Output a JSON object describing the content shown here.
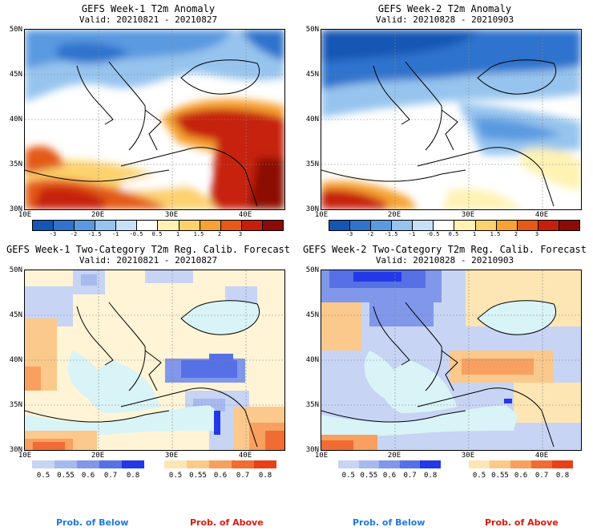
{
  "panels": [
    {
      "title": "GEFS Week-1 T2m Anomaly",
      "valid": "Valid: 20210821 - 20210827"
    },
    {
      "title": "GEFS Week-2 T2m Anomaly",
      "valid": "Valid: 20210828 - 20210903"
    },
    {
      "title": "GEFS Week-1 Two-Category T2m Reg. Calib. Forecast",
      "valid": "Valid: 20210821 - 20210827"
    },
    {
      "title": "GEFS Week-2 Two-Category T2m Reg. Calib. Forecast",
      "valid": "Valid: 20210828 - 20210903"
    }
  ],
  "axes": {
    "lat_labels": [
      "50N",
      "45N",
      "40N",
      "35N",
      "30N"
    ],
    "lon_labels": [
      "10E",
      "20E",
      "30E",
      "40E"
    ]
  },
  "anomaly_scale": {
    "ticks": [
      "-3",
      "-2",
      "-1.5",
      "-1",
      "-0.5",
      "0.5",
      "1",
      "1.5",
      "2",
      "3"
    ],
    "colors": [
      "#1456b4",
      "#2f73cd",
      "#5a9ae0",
      "#96c4ee",
      "#c6e1f7",
      "#ffffff",
      "#fff2b3",
      "#fcd26e",
      "#f7a233",
      "#e45a16",
      "#c6200c",
      "#8d0a06"
    ]
  },
  "prob_scale": {
    "below_ticks": [
      "0.5",
      "0.55",
      "0.6",
      "0.7",
      "0.8"
    ],
    "above_ticks": [
      "0.5",
      "0.55",
      "0.6",
      "0.7",
      "0.8"
    ],
    "below_colors": [
      "#c7d4f4",
      "#a7b9ef",
      "#8097ea",
      "#5670e6",
      "#2338e6"
    ],
    "above_colors": [
      "#fde6b4",
      "#fbc98c",
      "#f8a060",
      "#f16b34",
      "#e8411a"
    ]
  },
  "footer": {
    "below_label": "Prob. of Below",
    "above_label": "Prob. of Above",
    "below_color": "#1f78e0",
    "above_color": "#e0190e"
  }
}
